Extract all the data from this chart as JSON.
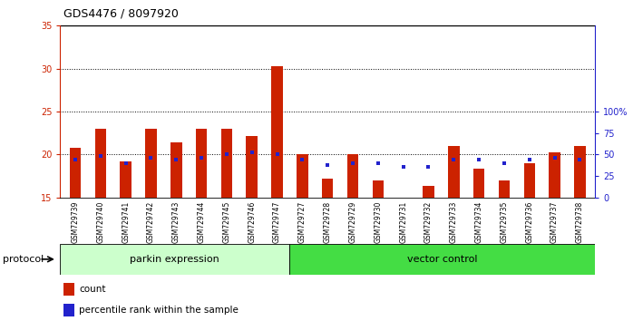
{
  "title": "GDS4476 / 8097920",
  "samples": [
    "GSM729739",
    "GSM729740",
    "GSM729741",
    "GSM729742",
    "GSM729743",
    "GSM729744",
    "GSM729745",
    "GSM729746",
    "GSM729747",
    "GSM729727",
    "GSM729728",
    "GSM729729",
    "GSM729730",
    "GSM729731",
    "GSM729732",
    "GSM729733",
    "GSM729734",
    "GSM729735",
    "GSM729736",
    "GSM729737",
    "GSM729738"
  ],
  "count_values": [
    20.8,
    23.0,
    19.2,
    23.0,
    21.4,
    23.0,
    23.0,
    22.2,
    30.3,
    20.0,
    17.2,
    20.0,
    17.0,
    15.0,
    16.3,
    21.0,
    18.3,
    17.0,
    19.0,
    20.2,
    21.0
  ],
  "percentile_values": [
    19.4,
    19.8,
    19.0,
    19.6,
    19.4,
    19.6,
    20.0,
    20.2,
    20.0,
    19.4,
    18.8,
    19.0,
    19.0,
    18.6,
    18.6,
    19.4,
    19.4,
    19.0,
    19.4,
    19.6,
    19.4
  ],
  "group_labels": [
    "parkin expression",
    "vector control"
  ],
  "group_sizes": [
    9,
    12
  ],
  "ymin": 15,
  "ymax": 35,
  "yticks_left": [
    15,
    20,
    25,
    30,
    35
  ],
  "yticks_right_pct": [
    0,
    25,
    50,
    75,
    100
  ],
  "bar_color": "#cc2200",
  "dot_color": "#2222cc",
  "plot_bg": "#ffffff",
  "tick_bg": "#c8c8c8",
  "group1_color": "#ccffcc",
  "group2_color": "#44dd44",
  "legend_count_label": "count",
  "legend_pct_label": "percentile rank within the sample",
  "protocol_label": "protocol"
}
